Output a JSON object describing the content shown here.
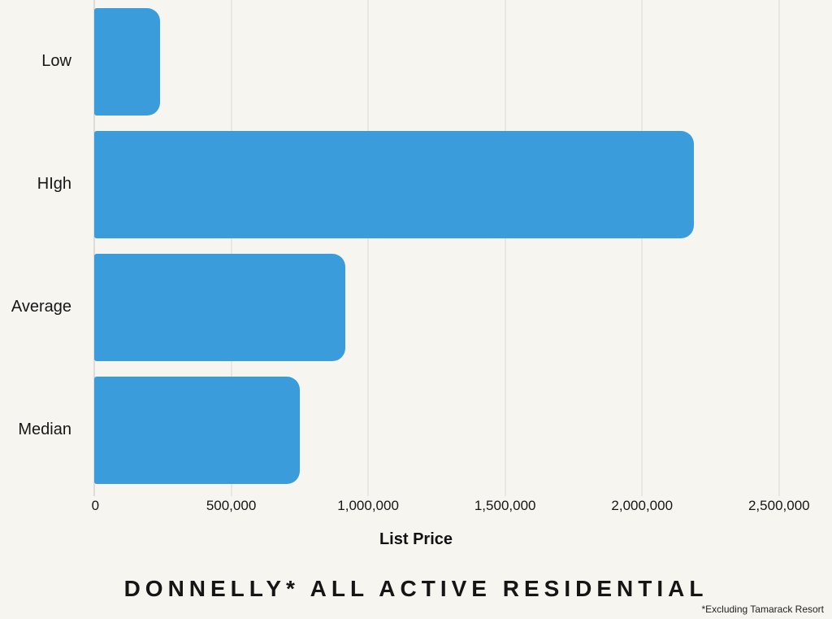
{
  "page": {
    "background_color": "#F7F5F0"
  },
  "chart_data": {
    "type": "bar",
    "orientation": "horizontal",
    "title": "DONNELLY* ALL ACTIVE RESIDENTIAL",
    "xlabel": "List Price",
    "ylabel": "",
    "footnote": "*Excluding Tamarack Resort",
    "categories": [
      "Low",
      "HIgh",
      "Average",
      "Median"
    ],
    "values": [
      240000,
      2190000,
      917000,
      750000
    ],
    "xlim": [
      0,
      2640000
    ],
    "xticks": [
      0,
      500000,
      1000000,
      1500000,
      2000000,
      2500000
    ],
    "xtick_labels": [
      "0",
      "500,000",
      "1,000,000",
      "1,500,000",
      "2,000,000",
      "2,500,000"
    ],
    "grid": true,
    "legend": false,
    "bar_color": "#3A9CDB",
    "grid_color": "#DCD9D3",
    "zero_line_color": "#C7C4BE",
    "text_color": "#1A1A1A"
  }
}
